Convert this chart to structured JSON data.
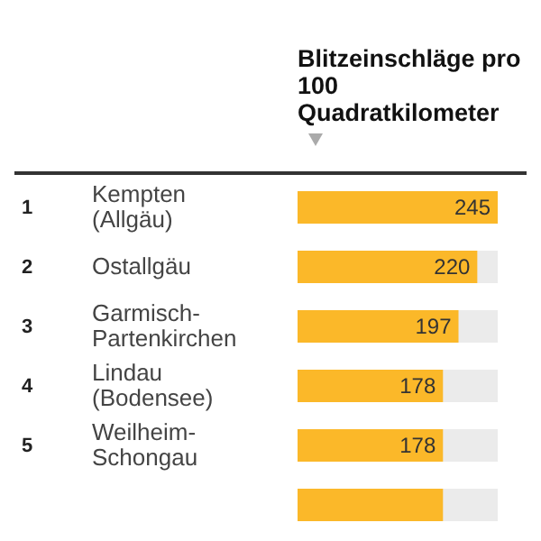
{
  "chart_data": {
    "type": "bar",
    "orientation": "horizontal",
    "title": "Blitzeinschläge pro 100 Quadratkilometer",
    "categories": [
      "Kempten (Allgäu)",
      "Ostallgäu",
      "Garmisch-Partenkirchen",
      "Lindau (Bodensee)",
      "Weilheim-Schongau",
      null
    ],
    "values": [
      245,
      220,
      197,
      178,
      178,
      178
    ],
    "value_labels": [
      "245",
      "220",
      "197",
      "178",
      "178",
      null
    ],
    "color": "#fbb829",
    "xlim": [
      0,
      245
    ],
    "tick_labels": "y",
    "annotations": [
      "1",
      "2",
      "3",
      "4",
      "5"
    ]
  }
}
